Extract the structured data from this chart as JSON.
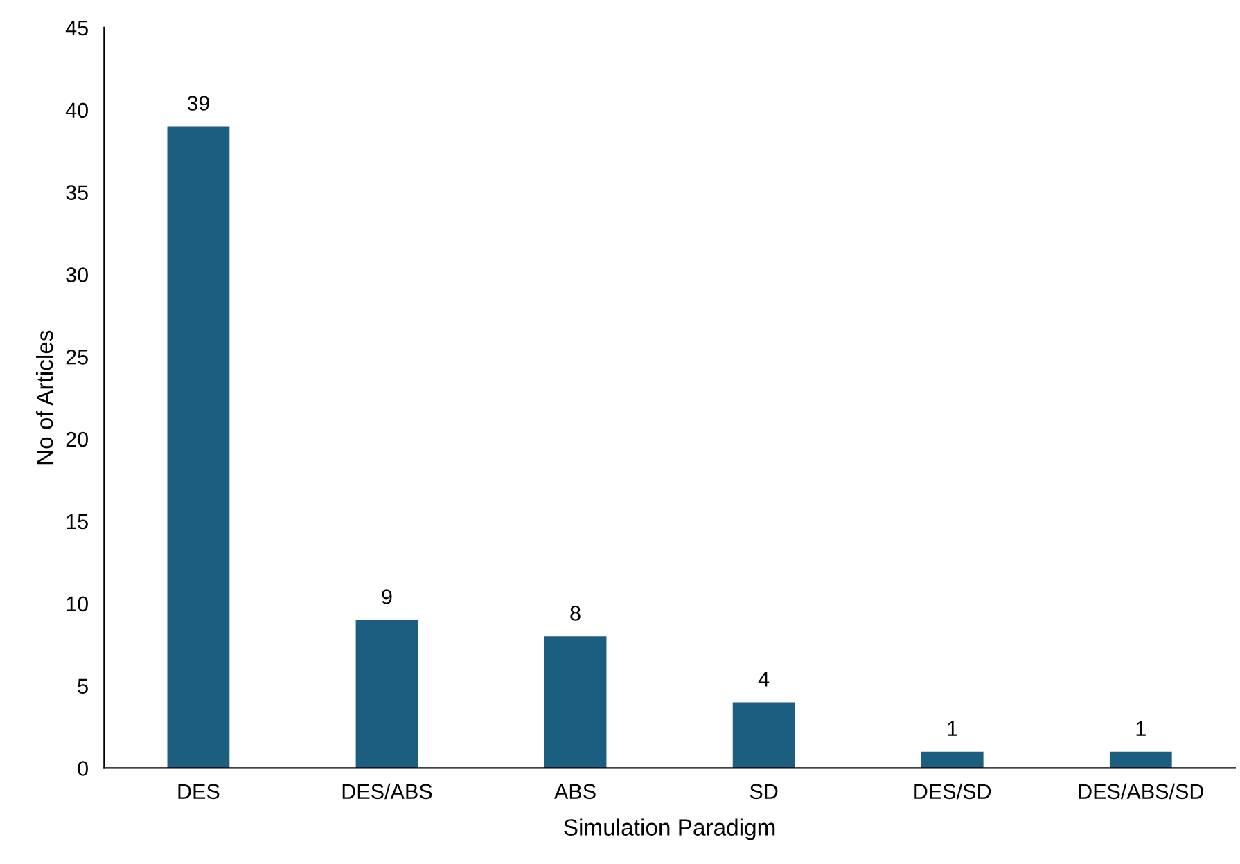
{
  "chart_data": {
    "type": "bar",
    "xlabel": "Simulation Paradigm",
    "ylabel": "No of Articles",
    "categories": [
      "DES",
      "DES/ABS",
      "ABS",
      "SD",
      "DES/SD",
      "DES/ABS/SD"
    ],
    "values": [
      39,
      9,
      8,
      4,
      1,
      1
    ],
    "color": "#1b5e80",
    "ylim": [
      0,
      45
    ],
    "yticks": [
      0,
      5,
      10,
      15,
      20,
      25,
      30,
      35,
      40,
      45
    ],
    "grid": false,
    "data_labels": true
  }
}
